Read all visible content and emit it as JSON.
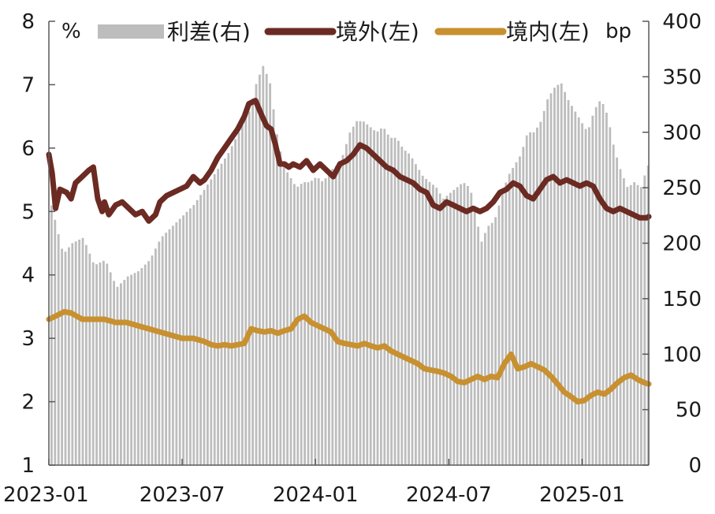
{
  "chart_data": {
    "type": "line",
    "title": "",
    "colors": {
      "spread": "#bdbdbd",
      "offshore": "#6b2a22",
      "onshore": "#c8902f",
      "axis": "#595959"
    },
    "left_axis": {
      "unit": "%",
      "ylim": [
        1,
        8
      ],
      "ticks": [
        "1",
        "2",
        "3",
        "4",
        "5",
        "6",
        "7",
        "8"
      ]
    },
    "right_axis": {
      "unit": "bp",
      "ylim": [
        0,
        400
      ],
      "ticks": [
        "0",
        "50",
        "100",
        "150",
        "200",
        "250",
        "300",
        "350",
        "400"
      ]
    },
    "x_axis": {
      "range": [
        0,
        27
      ],
      "tick_positions": [
        0,
        6,
        12,
        18,
        24
      ],
      "tick_labels": [
        "2023-01",
        "2023-07",
        "2024-01",
        "2024-07",
        "2025-01"
      ]
    },
    "legend": [
      {
        "key": "spread",
        "label": "利差(右)"
      },
      {
        "key": "offshore",
        "label": "境外(左)"
      },
      {
        "key": "onshore",
        "label": "境内(左)"
      }
    ],
    "series": [
      {
        "key": "offshore",
        "name": "境外(左)",
        "axis": "left",
        "x": [
          0,
          0.15,
          0.3,
          0.5,
          0.8,
          1.0,
          1.2,
          1.5,
          1.8,
          2.0,
          2.2,
          2.4,
          2.5,
          2.7,
          3.0,
          3.3,
          3.6,
          3.9,
          4.2,
          4.5,
          4.8,
          5.0,
          5.3,
          5.6,
          5.9,
          6.2,
          6.5,
          6.8,
          7.0,
          7.3,
          7.6,
          7.9,
          8.2,
          8.5,
          8.8,
          9.0,
          9.3,
          9.6,
          9.8,
          10.0,
          10.2,
          10.4,
          10.6,
          10.8,
          11.0,
          11.3,
          11.6,
          11.9,
          12.2,
          12.5,
          12.8,
          13.1,
          13.4,
          13.7,
          14.0,
          14.3,
          14.6,
          14.9,
          15.2,
          15.5,
          15.8,
          16.1,
          16.4,
          16.7,
          17.0,
          17.3,
          17.6,
          17.9,
          18.2,
          18.5,
          18.8,
          19.1,
          19.4,
          19.7,
          20.0,
          20.3,
          20.6,
          20.9,
          21.2,
          21.5,
          21.8,
          22.1,
          22.4,
          22.7,
          23.0,
          23.3,
          23.6,
          23.9,
          24.2,
          24.5,
          24.8,
          25.1,
          25.4,
          25.7,
          26.0,
          26.3,
          26.6,
          26.9,
          27.0
        ],
        "values": [
          5.9,
          5.6,
          5.05,
          5.35,
          5.3,
          5.2,
          5.45,
          5.55,
          5.65,
          5.7,
          5.2,
          5.0,
          5.15,
          4.95,
          5.1,
          5.15,
          5.05,
          4.95,
          5.0,
          4.85,
          4.95,
          5.15,
          5.25,
          5.3,
          5.35,
          5.4,
          5.55,
          5.45,
          5.5,
          5.65,
          5.85,
          6.0,
          6.15,
          6.3,
          6.5,
          6.7,
          6.75,
          6.5,
          6.35,
          6.3,
          6.05,
          5.75,
          5.75,
          5.7,
          5.75,
          5.7,
          5.8,
          5.65,
          5.75,
          5.65,
          5.55,
          5.75,
          5.8,
          5.9,
          6.05,
          6.0,
          5.9,
          5.8,
          5.7,
          5.65,
          5.55,
          5.5,
          5.45,
          5.35,
          5.3,
          5.1,
          5.05,
          5.15,
          5.1,
          5.05,
          5.0,
          5.05,
          5.0,
          5.05,
          5.15,
          5.3,
          5.35,
          5.45,
          5.4,
          5.25,
          5.2,
          5.35,
          5.5,
          5.55,
          5.45,
          5.5,
          5.45,
          5.4,
          5.45,
          5.4,
          5.2,
          5.05,
          5.0,
          5.05,
          5.0,
          4.95,
          4.9,
          4.9,
          4.92
        ]
      },
      {
        "key": "onshore",
        "name": "境内(左)",
        "axis": "left",
        "x": [
          0,
          0.3,
          0.7,
          1.0,
          1.5,
          2.0,
          2.5,
          3.0,
          3.5,
          4.0,
          4.5,
          5.0,
          5.5,
          6.0,
          6.5,
          7.0,
          7.3,
          7.6,
          7.9,
          8.2,
          8.5,
          8.8,
          9.1,
          9.4,
          9.7,
          10.0,
          10.3,
          10.6,
          10.9,
          11.2,
          11.5,
          11.8,
          12.1,
          12.4,
          12.7,
          13.0,
          13.3,
          13.6,
          13.9,
          14.2,
          14.5,
          14.8,
          15.1,
          15.4,
          15.7,
          16.0,
          16.3,
          16.6,
          16.9,
          17.2,
          17.5,
          17.8,
          18.1,
          18.4,
          18.7,
          19.0,
          19.3,
          19.6,
          19.9,
          20.2,
          20.5,
          20.8,
          21.1,
          21.4,
          21.7,
          22.0,
          22.3,
          22.6,
          22.9,
          23.2,
          23.5,
          23.8,
          24.1,
          24.4,
          24.7,
          25.0,
          25.3,
          25.6,
          25.9,
          26.2,
          26.5,
          26.8,
          27.0
        ],
        "values": [
          3.3,
          3.35,
          3.42,
          3.4,
          3.3,
          3.3,
          3.3,
          3.25,
          3.25,
          3.2,
          3.15,
          3.1,
          3.05,
          3.0,
          3.0,
          2.95,
          2.9,
          2.88,
          2.9,
          2.88,
          2.9,
          2.92,
          3.15,
          3.12,
          3.1,
          3.12,
          3.08,
          3.12,
          3.15,
          3.3,
          3.35,
          3.25,
          3.2,
          3.15,
          3.1,
          2.95,
          2.92,
          2.9,
          2.88,
          2.92,
          2.88,
          2.85,
          2.88,
          2.8,
          2.75,
          2.7,
          2.65,
          2.6,
          2.52,
          2.5,
          2.48,
          2.45,
          2.4,
          2.32,
          2.3,
          2.35,
          2.4,
          2.35,
          2.4,
          2.38,
          2.6,
          2.75,
          2.52,
          2.55,
          2.6,
          2.55,
          2.5,
          2.4,
          2.28,
          2.15,
          2.08,
          2.0,
          2.02,
          2.1,
          2.15,
          2.12,
          2.2,
          2.3,
          2.38,
          2.42,
          2.35,
          2.3,
          2.28
        ]
      },
      {
        "key": "spread",
        "name": "利差(右)",
        "axis": "right",
        "style": "bars",
        "x": [
          0,
          0.3,
          0.6,
          1.0,
          1.5,
          2.0,
          2.5,
          3.0,
          3.5,
          4.0,
          4.5,
          5.0,
          5.5,
          6.0,
          6.5,
          7.0,
          7.5,
          8.0,
          8.5,
          9.0,
          9.3,
          9.6,
          9.9,
          10.2,
          10.5,
          10.8,
          11.1,
          11.4,
          11.7,
          12.0,
          12.3,
          12.6,
          12.9,
          13.2,
          13.5,
          13.8,
          14.1,
          14.4,
          14.7,
          15.0,
          15.3,
          15.6,
          15.9,
          16.2,
          16.5,
          16.8,
          17.1,
          17.4,
          17.7,
          18.0,
          18.3,
          18.6,
          18.9,
          19.1,
          19.4,
          19.7,
          20.0,
          20.3,
          20.6,
          20.9,
          21.2,
          21.5,
          21.8,
          22.1,
          22.4,
          22.7,
          23.0,
          23.3,
          23.6,
          23.9,
          24.2,
          24.5,
          24.8,
          25.1,
          25.4,
          25.7,
          26.0,
          26.3,
          26.6,
          26.9
        ],
        "values": [
          240,
          215,
          190,
          200,
          205,
          180,
          185,
          160,
          170,
          175,
          185,
          205,
          215,
          225,
          235,
          250,
          265,
          280,
          300,
          320,
          345,
          360,
          345,
          300,
          270,
          260,
          250,
          255,
          255,
          260,
          255,
          265,
          270,
          280,
          300,
          310,
          310,
          305,
          300,
          305,
          295,
          295,
          285,
          280,
          270,
          260,
          255,
          250,
          240,
          245,
          250,
          255,
          250,
          235,
          200,
          215,
          220,
          240,
          260,
          270,
          280,
          300,
          300,
          310,
          330,
          340,
          345,
          330,
          320,
          310,
          300,
          320,
          330,
          315,
          285,
          265,
          250,
          255,
          250,
          270
        ]
      }
    ]
  }
}
